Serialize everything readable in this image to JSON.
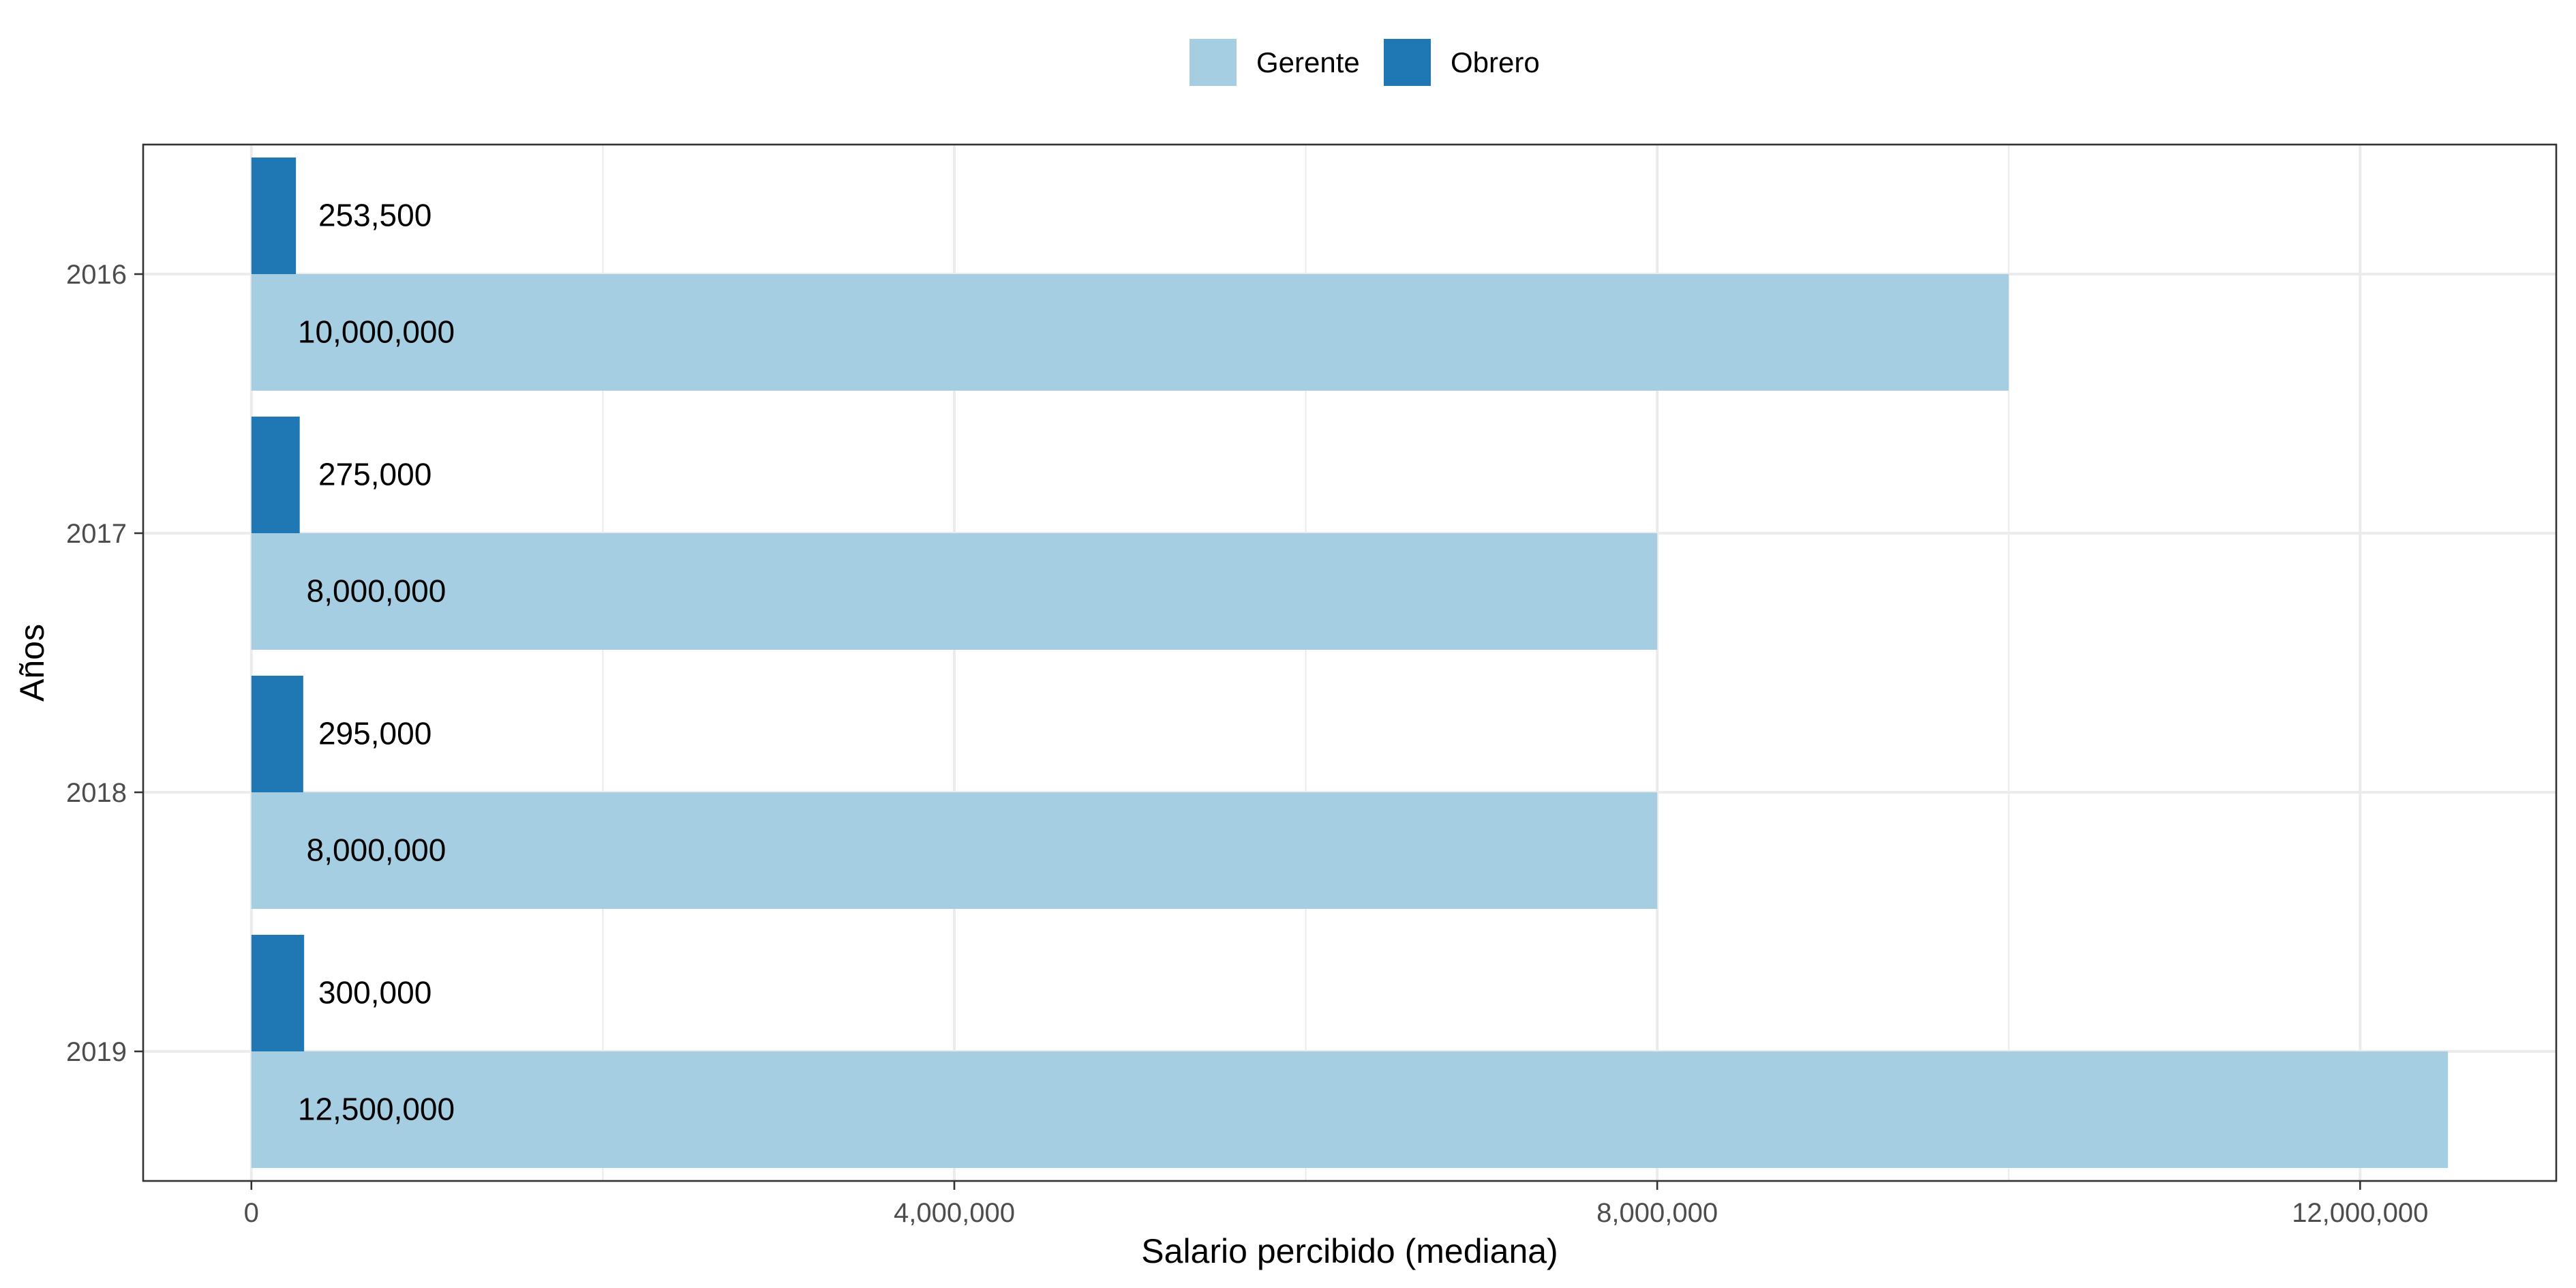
{
  "chart_data": {
    "type": "bar",
    "orientation": "horizontal",
    "categories": [
      "2016",
      "2017",
      "2018",
      "2019"
    ],
    "series": [
      {
        "name": "Gerente",
        "color": "#a6cee3",
        "values": [
          10000000,
          8000000,
          8000000,
          12500000
        ]
      },
      {
        "name": "Obrero",
        "color": "#1f78b4",
        "values": [
          253500,
          275000,
          295000,
          300000
        ]
      }
    ],
    "data_labels": {
      "Gerente": [
        "10,000,000",
        "8,000,000",
        "8,000,000",
        "12,500,000"
      ],
      "Obrero": [
        "253,500",
        "275,000",
        "295,000",
        "300,000"
      ]
    },
    "x_ticks": [
      0,
      4000000,
      8000000,
      12000000
    ],
    "x_tick_labels": [
      "0",
      "4,000,000",
      "8,000,000",
      "12,000,000"
    ],
    "xlim": [
      -616000,
      13116000
    ],
    "xlabel": "Salario percibido (mediana)",
    "ylabel": "Años",
    "legend_position": "top",
    "grid": true
  }
}
